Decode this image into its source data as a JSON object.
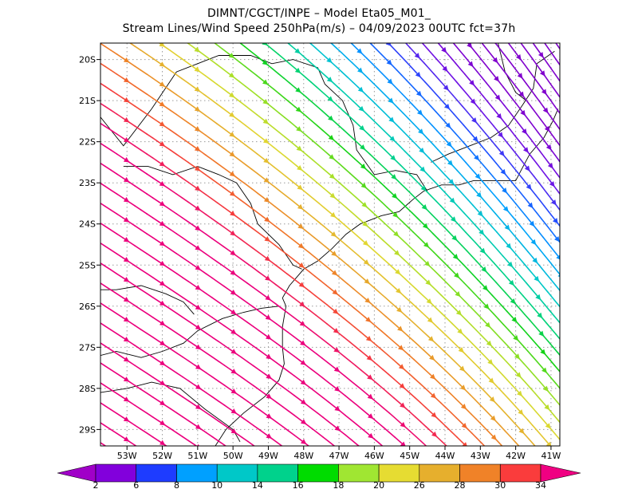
{
  "header": {
    "line1": "DIMNT/CGCT/INPE –  Model Eta05_M01_",
    "line2": "Stream Lines/Wind Speed 250hPa(m/s) –  04/09/2023 00UTC fct=37h"
  },
  "map": {
    "lon_range": [
      -53.75,
      -40.75
    ],
    "lat_range": [
      -29.4,
      -19.6
    ],
    "lat_ticks": [
      {
        "value": -20,
        "label": "20S"
      },
      {
        "value": -21,
        "label": "21S"
      },
      {
        "value": -22,
        "label": "22S"
      },
      {
        "value": -23,
        "label": "23S"
      },
      {
        "value": -24,
        "label": "24S"
      },
      {
        "value": -25,
        "label": "25S"
      },
      {
        "value": -26,
        "label": "26S"
      },
      {
        "value": -27,
        "label": "27S"
      },
      {
        "value": -28,
        "label": "28S"
      },
      {
        "value": -29,
        "label": "29S"
      }
    ],
    "lon_ticks": [
      {
        "value": -53,
        "label": "53W"
      },
      {
        "value": -52,
        "label": "52W"
      },
      {
        "value": -51,
        "label": "51W"
      },
      {
        "value": -50,
        "label": "50W"
      },
      {
        "value": -49,
        "label": "49W"
      },
      {
        "value": -48,
        "label": "48W"
      },
      {
        "value": -47,
        "label": "47W"
      },
      {
        "value": -46,
        "label": "46W"
      },
      {
        "value": -45,
        "label": "45W"
      },
      {
        "value": -44,
        "label": "44W"
      },
      {
        "value": -43,
        "label": "43W"
      },
      {
        "value": -42,
        "label": "42W"
      },
      {
        "value": -41,
        "label": "41W"
      }
    ],
    "grid": true
  },
  "colorbar": {
    "labels": [
      "2",
      "6",
      "8",
      "10",
      "14",
      "16",
      "18",
      "20",
      "26",
      "28",
      "30",
      "34"
    ],
    "colors": [
      "#a000c8",
      "#8200dc",
      "#1e3cff",
      "#00a0ff",
      "#00c8c8",
      "#00d28c",
      "#00dc00",
      "#a0e632",
      "#e6dc32",
      "#e6af2d",
      "#f08228",
      "#fa3c3c",
      "#f00082"
    ]
  }
}
